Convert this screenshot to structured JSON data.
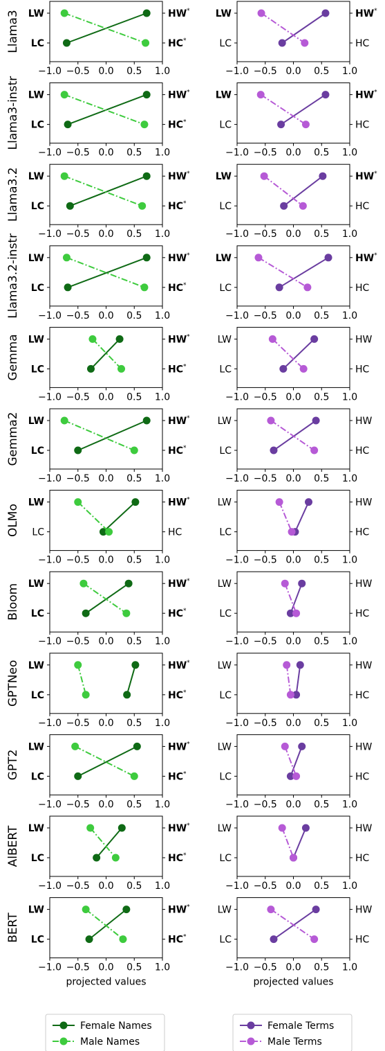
{
  "chart_data": {
    "type": "line",
    "xlabel": "projected values",
    "xlim": [
      -1.0,
      1.0
    ],
    "xticks": [
      "−1.0",
      "−0.5",
      "0.0",
      "0.5",
      "1.0"
    ],
    "y_categories": [
      "LW",
      "LC"
    ],
    "right_categories": [
      "HW",
      "HC"
    ],
    "sig_marker": "*",
    "colors": {
      "female_names": "#0f6a15",
      "male_names": "#3ecb3e",
      "female_terms": "#6a3da0",
      "male_terms": "#b65ad6"
    },
    "legend_left": {
      "female": "Female Names",
      "male": "Male Names"
    },
    "legend_right": {
      "female": "Female Terms",
      "male": "Male Terms"
    },
    "models": [
      {
        "name": "Llama3",
        "names": {
          "sig_left": [
            true,
            true
          ],
          "sig_right": [
            true,
            true
          ],
          "female": {
            "LW": 0.72,
            "LC": -0.7
          },
          "male": {
            "LW": -0.74,
            "LC": 0.7
          }
        },
        "terms": {
          "sig_left": [
            true,
            false
          ],
          "sig_right": [
            true,
            false
          ],
          "female": {
            "LW": 0.57,
            "LC": -0.2
          },
          "male": {
            "LW": -0.57,
            "LC": 0.2
          }
        }
      },
      {
        "name": "Llama3-instr",
        "names": {
          "sig_left": [
            true,
            true
          ],
          "sig_right": [
            true,
            true
          ],
          "female": {
            "LW": 0.72,
            "LC": -0.68
          },
          "male": {
            "LW": -0.74,
            "LC": 0.68
          }
        },
        "terms": {
          "sig_left": [
            true,
            false
          ],
          "sig_right": [
            true,
            false
          ],
          "female": {
            "LW": 0.57,
            "LC": -0.22
          },
          "male": {
            "LW": -0.58,
            "LC": 0.22
          }
        }
      },
      {
        "name": "Llama3.2",
        "names": {
          "sig_left": [
            true,
            true
          ],
          "sig_right": [
            true,
            true
          ],
          "female": {
            "LW": 0.72,
            "LC": -0.64
          },
          "male": {
            "LW": -0.74,
            "LC": 0.64
          }
        },
        "terms": {
          "sig_left": [
            true,
            false
          ],
          "sig_right": [
            true,
            false
          ],
          "female": {
            "LW": 0.52,
            "LC": -0.17
          },
          "male": {
            "LW": -0.52,
            "LC": 0.17
          }
        }
      },
      {
        "name": "Llama3.2-instr",
        "names": {
          "sig_left": [
            true,
            true
          ],
          "sig_right": [
            true,
            true
          ],
          "female": {
            "LW": 0.72,
            "LC": -0.68
          },
          "male": {
            "LW": -0.7,
            "LC": 0.68
          }
        },
        "terms": {
          "sig_left": [
            true,
            false
          ],
          "sig_right": [
            true,
            false
          ],
          "female": {
            "LW": 0.62,
            "LC": -0.25
          },
          "male": {
            "LW": -0.62,
            "LC": 0.25
          }
        }
      },
      {
        "name": "Gemma",
        "names": {
          "sig_left": [
            true,
            true
          ],
          "sig_right": [
            true,
            true
          ],
          "female": {
            "LW": 0.24,
            "LC": -0.27
          },
          "male": {
            "LW": -0.24,
            "LC": 0.27
          }
        },
        "terms": {
          "sig_left": [
            false,
            false
          ],
          "sig_right": [
            false,
            false
          ],
          "female": {
            "LW": 0.37,
            "LC": -0.18
          },
          "male": {
            "LW": -0.37,
            "LC": 0.18
          }
        }
      },
      {
        "name": "Gemma2",
        "names": {
          "sig_left": [
            true,
            true
          ],
          "sig_right": [
            true,
            true
          ],
          "female": {
            "LW": 0.72,
            "LC": -0.5
          },
          "male": {
            "LW": -0.74,
            "LC": 0.5
          }
        },
        "terms": {
          "sig_left": [
            false,
            false
          ],
          "sig_right": [
            false,
            false
          ],
          "female": {
            "LW": 0.4,
            "LC": -0.35
          },
          "male": {
            "LW": -0.4,
            "LC": 0.37
          }
        }
      },
      {
        "name": "OLMo",
        "names": {
          "sig_left": [
            true,
            false
          ],
          "sig_right": [
            true,
            false
          ],
          "female": {
            "LW": 0.52,
            "LC": -0.05
          },
          "male": {
            "LW": -0.5,
            "LC": 0.05
          }
        },
        "terms": {
          "sig_left": [
            false,
            false
          ],
          "sig_right": [
            false,
            false
          ],
          "female": {
            "LW": 0.27,
            "LC": 0.03
          },
          "male": {
            "LW": -0.25,
            "LC": -0.03
          }
        }
      },
      {
        "name": "Bloom",
        "names": {
          "sig_left": [
            true,
            true
          ],
          "sig_right": [
            true,
            true
          ],
          "female": {
            "LW": 0.4,
            "LC": -0.36
          },
          "male": {
            "LW": -0.4,
            "LC": 0.36
          }
        },
        "terms": {
          "sig_left": [
            false,
            false
          ],
          "sig_right": [
            false,
            false
          ],
          "female": {
            "LW": 0.15,
            "LC": -0.05
          },
          "male": {
            "LW": -0.15,
            "LC": 0.05
          }
        }
      },
      {
        "name": "GPTNeo",
        "names": {
          "sig_left": [
            true,
            true
          ],
          "sig_right": [
            true,
            true
          ],
          "female": {
            "LW": 0.52,
            "LC": 0.37
          },
          "male": {
            "LW": -0.5,
            "LC": -0.36
          }
        },
        "terms": {
          "sig_left": [
            false,
            false
          ],
          "sig_right": [
            false,
            false
          ],
          "female": {
            "LW": 0.12,
            "LC": 0.05
          },
          "male": {
            "LW": -0.12,
            "LC": -0.05
          }
        }
      },
      {
        "name": "GPT2",
        "names": {
          "sig_left": [
            true,
            true
          ],
          "sig_right": [
            true,
            true
          ],
          "female": {
            "LW": 0.55,
            "LC": -0.5
          },
          "male": {
            "LW": -0.55,
            "LC": 0.5
          }
        },
        "terms": {
          "sig_left": [
            false,
            false
          ],
          "sig_right": [
            false,
            false
          ],
          "female": {
            "LW": 0.15,
            "LC": -0.05
          },
          "male": {
            "LW": -0.15,
            "LC": 0.05
          }
        }
      },
      {
        "name": "AlBERT",
        "names": {
          "sig_left": [
            true,
            true
          ],
          "sig_right": [
            true,
            true
          ],
          "female": {
            "LW": 0.28,
            "LC": -0.17
          },
          "male": {
            "LW": -0.28,
            "LC": 0.17
          }
        },
        "terms": {
          "sig_left": [
            false,
            false
          ],
          "sig_right": [
            false,
            false
          ],
          "female": {
            "LW": 0.22,
            "LC": 0.0
          },
          "male": {
            "LW": -0.2,
            "LC": 0.0
          }
        }
      },
      {
        "name": "BERT",
        "names": {
          "sig_left": [
            true,
            true
          ],
          "sig_right": [
            true,
            true
          ],
          "female": {
            "LW": 0.36,
            "LC": -0.3
          },
          "male": {
            "LW": -0.36,
            "LC": 0.3
          }
        },
        "terms": {
          "sig_left": [
            false,
            false
          ],
          "sig_right": [
            false,
            false
          ],
          "female": {
            "LW": 0.4,
            "LC": -0.35
          },
          "male": {
            "LW": -0.4,
            "LC": 0.37
          }
        }
      }
    ]
  }
}
